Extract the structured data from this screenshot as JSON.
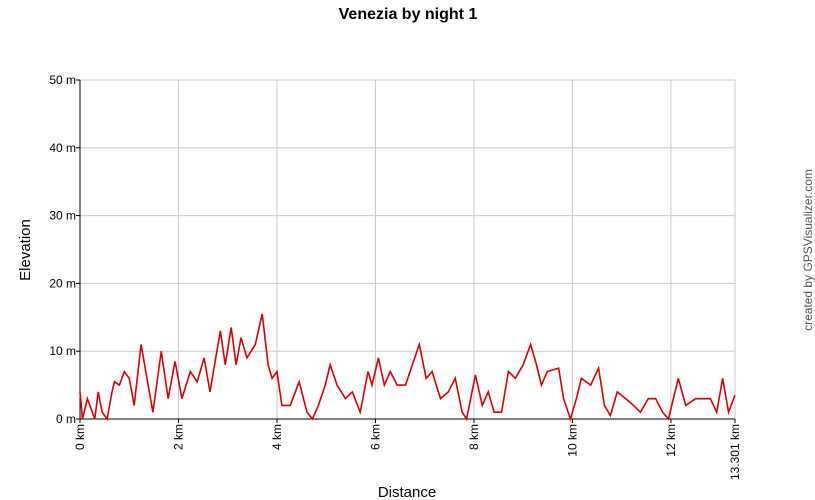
{
  "chart_data": {
    "type": "line",
    "title": "Venezia by night 1",
    "x_label": "Distance",
    "y_label": "Elevation",
    "watermark": "created by GPSVisualizer.com",
    "xlim": [
      0,
      13.301
    ],
    "ylim": [
      0,
      50
    ],
    "xticks": [
      {
        "value": 0,
        "label": "0 km"
      },
      {
        "value": 2,
        "label": "2 km"
      },
      {
        "value": 4,
        "label": "4 km"
      },
      {
        "value": 6,
        "label": "6 km"
      },
      {
        "value": 8,
        "label": "8 km"
      },
      {
        "value": 10,
        "label": "10 km"
      },
      {
        "value": 12,
        "label": "12 km"
      },
      {
        "value": 13.301,
        "label": "13.301 km"
      }
    ],
    "yticks": [
      {
        "value": 0,
        "label": "0 m"
      },
      {
        "value": 10,
        "label": "10 m"
      },
      {
        "value": 20,
        "label": "20 m"
      },
      {
        "value": 30,
        "label": "30 m"
      },
      {
        "value": 40,
        "label": "40 m"
      },
      {
        "value": 50,
        "label": "50 m"
      }
    ],
    "grid": true,
    "x": [
      0,
      0.05,
      0.15,
      0.3,
      0.37,
      0.45,
      0.55,
      0.65,
      0.7,
      0.8,
      0.9,
      1.0,
      1.1,
      1.24,
      1.48,
      1.65,
      1.79,
      1.93,
      2.07,
      2.24,
      2.38,
      2.52,
      2.64,
      2.85,
      2.95,
      3.07,
      3.17,
      3.27,
      3.39,
      3.56,
      3.7,
      3.82,
      3.9,
      4.0,
      4.1,
      4.27,
      4.45,
      4.61,
      4.72,
      4.84,
      4.98,
      5.08,
      5.22,
      5.39,
      5.53,
      5.69,
      5.85,
      5.93,
      6.06,
      6.18,
      6.3,
      6.44,
      6.61,
      6.75,
      6.89,
      7.03,
      7.15,
      7.32,
      7.48,
      7.62,
      7.76,
      7.85,
      8.03,
      8.17,
      8.29,
      8.41,
      8.56,
      8.7,
      8.84,
      9.0,
      9.15,
      9.27,
      9.37,
      9.49,
      9.72,
      9.82,
      9.96,
      10.08,
      10.18,
      10.37,
      10.53,
      10.65,
      10.77,
      10.91,
      11.08,
      11.24,
      11.38,
      11.54,
      11.69,
      11.83,
      11.95,
      12.15,
      12.3,
      12.5,
      12.8,
      12.93,
      13.05,
      13.17,
      13.3
    ],
    "series": [
      {
        "name": "Elevation",
        "color": "#dd0000",
        "values": [
          4,
          0,
          3,
          0,
          4,
          1,
          0,
          4,
          5.5,
          5,
          7,
          6,
          2,
          11,
          1,
          10,
          3,
          8.5,
          3,
          7,
          5.5,
          9,
          4,
          13,
          8,
          13.5,
          8,
          12,
          9,
          11,
          15.5,
          8,
          6,
          7,
          2,
          2,
          5.5,
          1,
          0,
          2,
          5,
          8,
          5,
          3,
          4,
          1,
          7,
          5,
          9,
          5,
          7,
          5,
          5,
          8,
          11,
          6,
          7,
          3,
          4,
          6,
          1,
          0,
          6.5,
          2,
          4,
          1,
          1,
          7,
          6,
          8,
          11,
          8,
          5,
          7,
          7.5,
          3,
          0,
          3,
          6,
          5,
          7.5,
          2,
          0.5,
          4,
          3,
          2,
          1,
          3,
          3,
          1,
          0,
          6,
          2,
          3,
          3,
          1,
          6,
          1,
          3.5
        ]
      }
    ]
  }
}
